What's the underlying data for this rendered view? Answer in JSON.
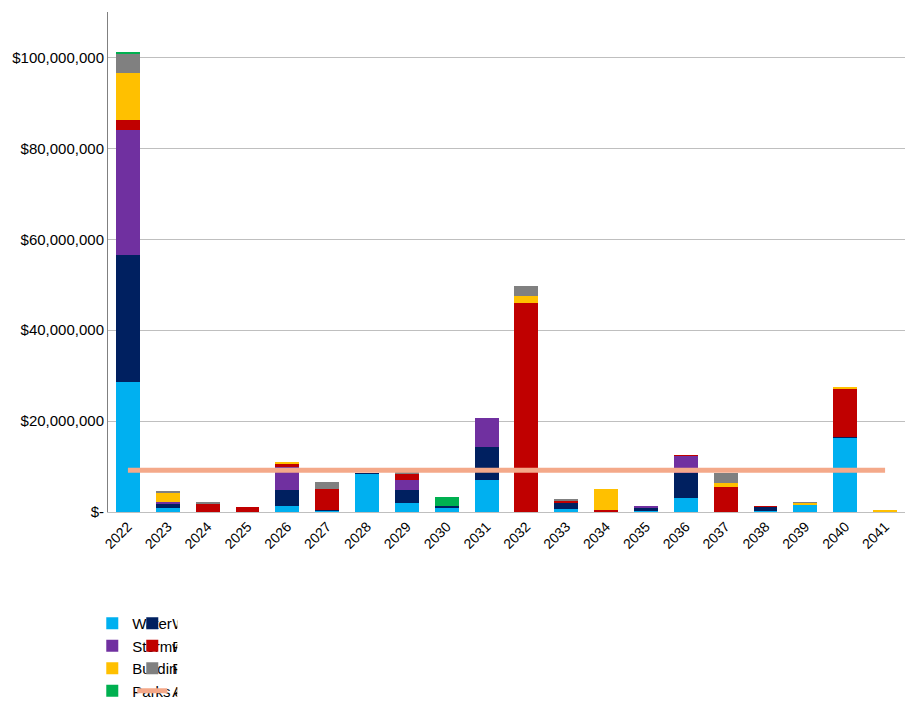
{
  "chart_data": {
    "type": "bar",
    "stacked": true,
    "grid": true,
    "legend": "bottom",
    "categories": [
      "2022",
      "2023",
      "2024",
      "2025",
      "2026",
      "2027",
      "2028",
      "2029",
      "2030",
      "2031",
      "2032",
      "2033",
      "2034",
      "2035",
      "2036",
      "2037",
      "2038",
      "2039",
      "2040",
      "2041"
    ],
    "ylim": [
      0,
      110000000
    ],
    "yticks": [
      {
        "value": 0,
        "label": "$-"
      },
      {
        "value": 20000000,
        "label": "$20,000,000"
      },
      {
        "value": 40000000,
        "label": "$40,000,000"
      },
      {
        "value": 60000000,
        "label": "$60,000,000"
      },
      {
        "value": 80000000,
        "label": "$80,000,000"
      },
      {
        "value": 100000000,
        "label": "$100,000,000"
      }
    ],
    "series": [
      {
        "name": "Water System",
        "color": "#00B0F0",
        "values": [
          28500000,
          800000,
          0,
          0,
          1300000,
          200000,
          8300000,
          2000000,
          800000,
          7000000,
          0,
          700000,
          0,
          200000,
          3000000,
          0,
          300000,
          1500000,
          16200000,
          0
        ]
      },
      {
        "name": "Wastewater System",
        "color": "#002060",
        "values": [
          28000000,
          1000000,
          0,
          0,
          3500000,
          300000,
          200000,
          2800000,
          600000,
          7300000,
          0,
          1300000,
          0,
          600000,
          5500000,
          0,
          800000,
          0,
          200000,
          0
        ]
      },
      {
        "name": "Stormwater System",
        "color": "#7030A0",
        "values": [
          27500000,
          300000,
          0,
          0,
          5200000,
          0,
          0,
          2300000,
          0,
          6300000,
          0,
          0,
          0,
          600000,
          3800000,
          0,
          0,
          0,
          0,
          0
        ]
      },
      {
        "name": "Roadway System",
        "color": "#C00000",
        "values": [
          2300000,
          0,
          1700000,
          1200000,
          600000,
          4500000,
          0,
          1200000,
          0,
          0,
          46000000,
          400000,
          400000,
          0,
          200000,
          5500000,
          200000,
          0,
          10700000,
          0
        ]
      },
      {
        "name": "Buildings",
        "color": "#FFC000",
        "values": [
          10200000,
          2000000,
          0,
          0,
          400000,
          0,
          0,
          0,
          0,
          0,
          1500000,
          0,
          4700000,
          0,
          0,
          800000,
          0,
          400000,
          300000,
          400000
        ]
      },
      {
        "name": "Fleet & Equipment",
        "color": "#808080",
        "values": [
          4300000,
          500000,
          500000,
          0,
          0,
          1700000,
          0,
          500000,
          0,
          0,
          2300000,
          500000,
          0,
          0,
          0,
          2200000,
          0,
          300000,
          0,
          0
        ]
      },
      {
        "name": "Parks & Recreation",
        "color": "#00B050",
        "values": [
          400000,
          0,
          0,
          0,
          0,
          0,
          0,
          0,
          1800000,
          0,
          0,
          0,
          0,
          0,
          0,
          0,
          0,
          0,
          0,
          0
        ]
      },
      {
        "name": "Average Annual Life Cycle Investment (AALCI)",
        "color": "#F4A98A",
        "type": "line",
        "values": [
          9200000,
          9200000,
          9200000,
          9200000,
          9200000,
          9200000,
          9200000,
          9200000,
          9200000,
          9200000,
          9200000,
          9200000,
          9200000,
          9200000,
          9200000,
          9200000,
          9200000,
          9200000,
          9200000,
          9200000
        ]
      }
    ]
  }
}
